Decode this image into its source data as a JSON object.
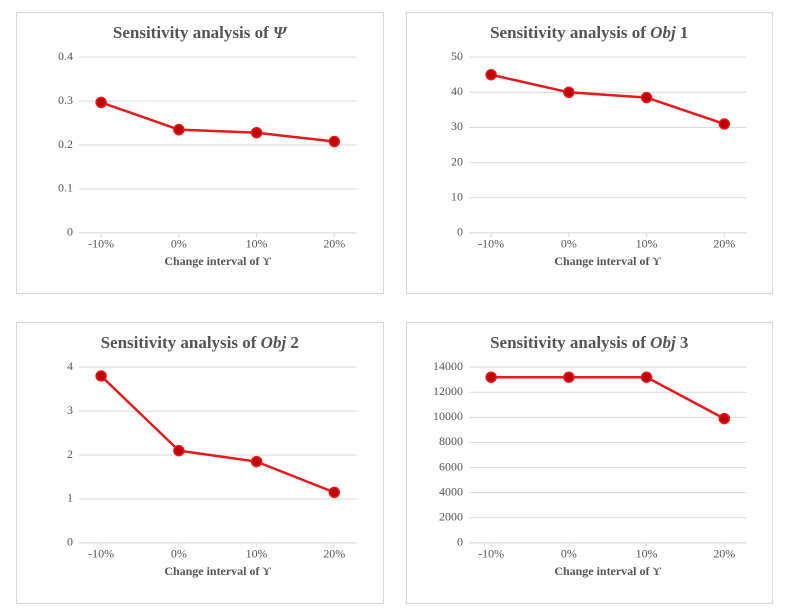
{
  "figure": {
    "background_color": "#ffffff",
    "panel_border_color": "#d6d6d6",
    "grid_color": "#d9d9d9",
    "text_color": "#555555",
    "title_fontsize": 17,
    "tick_fontsize": 12,
    "axis_label_fontsize": 12,
    "font_family": "Times New Roman",
    "panels": [
      "psi",
      "obj1",
      "obj2",
      "obj3"
    ]
  },
  "psi": {
    "type": "line",
    "title_prefix": "Sensitivity analysis of ",
    "title_symbol": "Ψ",
    "xlabel": "Change interval of ϒ",
    "categories": [
      "-10%",
      "0%",
      "10%",
      "20%"
    ],
    "values": [
      0.297,
      0.235,
      0.228,
      0.208
    ],
    "ylim": [
      0,
      0.4
    ],
    "ytick_step": 0.1,
    "ytick_labels": [
      "0",
      "0.1",
      "0.2",
      "0.3",
      "0.4"
    ],
    "line_color": "#e41a1c",
    "line_width": 2.5,
    "marker_fill": "#c00000",
    "marker_stroke": "#e41a1c",
    "marker_radius": 5,
    "show_grid": true
  },
  "obj1": {
    "type": "line",
    "title_prefix": "Sensitivity analysis of ",
    "title_ital": "Obj",
    "title_suffix": " 1",
    "xlabel": "Change interval of ϒ",
    "categories": [
      "-10%",
      "0%",
      "10%",
      "20%"
    ],
    "values": [
      45,
      40,
      38.5,
      31
    ],
    "ylim": [
      0,
      50
    ],
    "ytick_step": 10,
    "ytick_labels": [
      "0",
      "10",
      "20",
      "30",
      "40",
      "50"
    ],
    "line_color": "#e41a1c",
    "line_width": 2.5,
    "marker_fill": "#c00000",
    "marker_stroke": "#e41a1c",
    "marker_radius": 5,
    "show_grid": true
  },
  "obj2": {
    "type": "line",
    "title_prefix": "Sensitivity analysis of ",
    "title_ital": "Obj",
    "title_suffix": " 2",
    "xlabel": "Change interval of ϒ",
    "categories": [
      "-10%",
      "0%",
      "10%",
      "20%"
    ],
    "values": [
      3.8,
      2.1,
      1.85,
      1.15
    ],
    "ylim": [
      0,
      4
    ],
    "ytick_step": 1,
    "ytick_labels": [
      "0",
      "1",
      "2",
      "3",
      "4"
    ],
    "line_color": "#e41a1c",
    "line_width": 2.5,
    "marker_fill": "#c00000",
    "marker_stroke": "#e41a1c",
    "marker_radius": 5,
    "show_grid": true
  },
  "obj3": {
    "type": "line",
    "title_prefix": "Sensitivity analysis of ",
    "title_ital": "Obj",
    "title_suffix": " 3",
    "xlabel": "Change interval of ϒ",
    "categories": [
      "-10%",
      "0%",
      "10%",
      "20%"
    ],
    "values": [
      13200,
      13200,
      13200,
      9900
    ],
    "ylim": [
      0,
      14000
    ],
    "ytick_step": 2000,
    "ytick_labels": [
      "0",
      "2000",
      "4000",
      "6000",
      "8000",
      "10000",
      "12000",
      "14000"
    ],
    "line_color": "#e41a1c",
    "line_width": 2.5,
    "marker_fill": "#c00000",
    "marker_stroke": "#e41a1c",
    "marker_radius": 5,
    "show_grid": true
  }
}
